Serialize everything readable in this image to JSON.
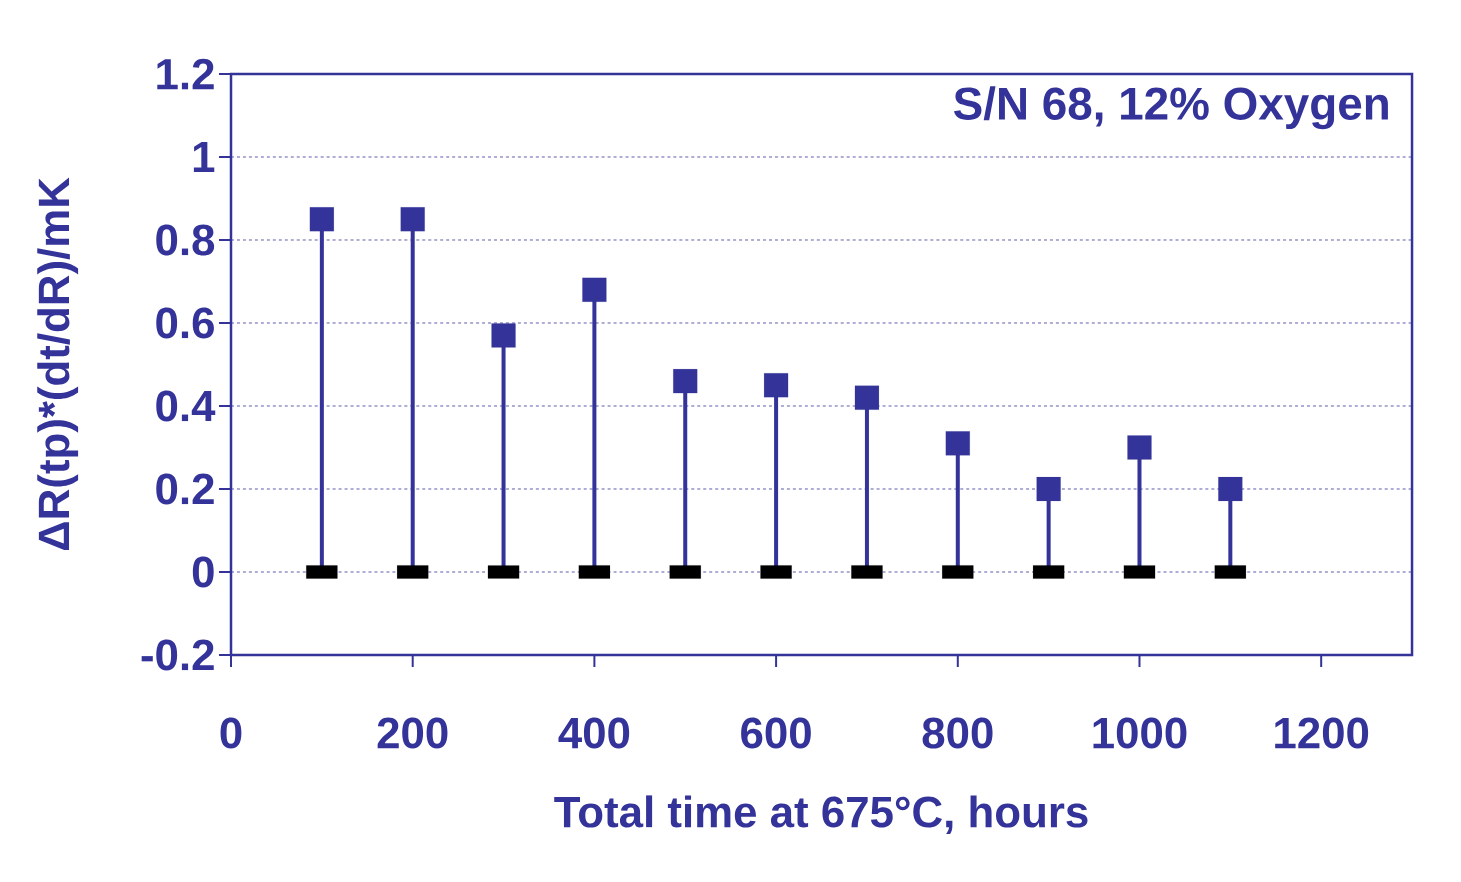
{
  "chart_data": {
    "type": "lollipop",
    "xlabel": "Total time at 675°C, hours",
    "ylabel": "ΔR(tp)*(dt/dR)/mK",
    "annotations": [
      "S/N 68, 12%  Oxygen"
    ],
    "x": [
      100,
      200,
      300,
      400,
      500,
      600,
      700,
      800,
      900,
      1000,
      1100
    ],
    "series": [
      {
        "color": "#333399",
        "marker": "square",
        "values": [
          0.85,
          0.85,
          0.57,
          0.68,
          0.46,
          0.45,
          0.42,
          0.31,
          0.2,
          0.3,
          0.2
        ]
      },
      {
        "type": "scatter",
        "color": "#000000",
        "marker": "square",
        "values": [
          0,
          0,
          0,
          0,
          0,
          0,
          0,
          0,
          0,
          0,
          0
        ]
      }
    ],
    "xlim": [
      0,
      1300
    ],
    "xticks": [
      0,
      200,
      400,
      600,
      800,
      1000,
      1200
    ],
    "ylim": [
      -0.2,
      1.2
    ],
    "yticks": [
      -0.2,
      0,
      0.2,
      0.4,
      0.6,
      0.8,
      1,
      1.2
    ],
    "grid": "y"
  }
}
